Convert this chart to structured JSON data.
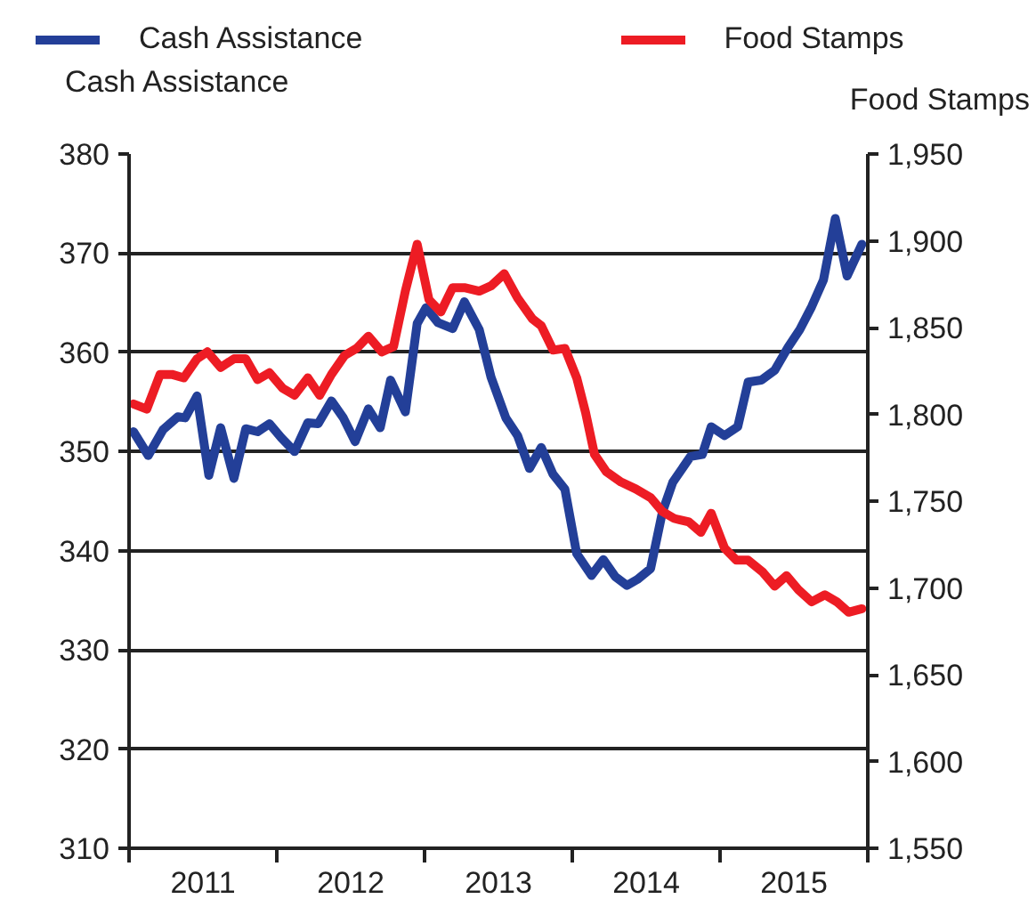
{
  "chart_data": {
    "type": "line",
    "ylabel": "Cash Assistance",
    "y2label": "Food Stamps",
    "xlim": [
      2011,
      2016
    ],
    "xticks": [
      {
        "value": 2011,
        "label": null
      },
      {
        "value": 2011.5,
        "label": "2011"
      },
      {
        "value": 2012,
        "label": null
      },
      {
        "value": 2012.5,
        "label": "2012"
      },
      {
        "value": 2013,
        "label": null
      },
      {
        "value": 2013.5,
        "label": "2013"
      },
      {
        "value": 2014,
        "label": null
      },
      {
        "value": 2014.5,
        "label": "2014"
      },
      {
        "value": 2015,
        "label": null
      },
      {
        "value": 2015.5,
        "label": "2015"
      },
      {
        "value": 2016,
        "label": null
      }
    ],
    "ylim": [
      310,
      380
    ],
    "yticks": [
      310,
      320,
      330,
      340,
      350,
      360,
      370,
      380
    ],
    "y2lim": [
      1550,
      1950
    ],
    "y2ticks": [
      {
        "value": 1550,
        "label": "1,550"
      },
      {
        "value": 1600,
        "label": "1,600"
      },
      {
        "value": 1650,
        "label": "1,650"
      },
      {
        "value": 1700,
        "label": "1,700"
      },
      {
        "value": 1750,
        "label": "1,750"
      },
      {
        "value": 1800,
        "label": "1,800"
      },
      {
        "value": 1850,
        "label": "1,850"
      },
      {
        "value": 1900,
        "label": "1,900"
      },
      {
        "value": 1950,
        "label": "1,950"
      }
    ],
    "grid": "y",
    "legend": "top",
    "marker": "none",
    "line_style": "solid",
    "series": [
      {
        "name": "Cash Assistance",
        "color": "#233f98",
        "x": [
          2011.03,
          2011.13,
          2011.23,
          2011.33,
          2011.38,
          2011.46,
          2011.54,
          2011.62,
          2011.71,
          2011.79,
          2011.87,
          2011.95,
          2012.03,
          2012.12,
          2012.21,
          2012.28,
          2012.37,
          2012.45,
          2012.53,
          2012.62,
          2012.7,
          2012.77,
          2012.87,
          2012.95,
          2013.01,
          2013.09,
          2013.19,
          2013.27,
          2013.37,
          2013.45,
          2013.55,
          2013.63,
          2013.71,
          2013.79,
          2013.87,
          2013.95,
          2014.03,
          2014.13,
          2014.21,
          2014.29,
          2014.37,
          2014.44,
          2014.53,
          2014.61,
          2014.68,
          2014.8,
          2014.88,
          2014.94,
          2015.03,
          2015.12,
          2015.19,
          2015.28,
          2015.37,
          2015.46,
          2015.54,
          2015.62,
          2015.7,
          2015.78,
          2015.86,
          2015.96
        ],
        "values": [
          352.0,
          349.6,
          352.2,
          353.5,
          353.4,
          355.6,
          347.6,
          352.4,
          347.3,
          352.3,
          352.0,
          352.8,
          351.4,
          350.0,
          352.9,
          352.8,
          355.1,
          353.4,
          351.0,
          354.3,
          352.4,
          357.2,
          354.0,
          362.9,
          364.5,
          363.0,
          362.4,
          365.1,
          362.3,
          357.5,
          353.4,
          351.6,
          348.3,
          350.4,
          347.7,
          346.2,
          339.7,
          337.5,
          339.1,
          337.4,
          336.5,
          337.1,
          338.2,
          343.9,
          346.9,
          349.5,
          349.7,
          352.5,
          351.6,
          352.5,
          357.0,
          357.2,
          358.2,
          360.5,
          362.3,
          364.6,
          367.3,
          373.5,
          367.7,
          370.9
        ]
      },
      {
        "name": "Food Stamps",
        "color": "#ed1c24",
        "axis": "y2",
        "x": [
          2011.03,
          2011.12,
          2011.21,
          2011.29,
          2011.37,
          2011.46,
          2011.53,
          2011.62,
          2011.71,
          2011.79,
          2011.87,
          2011.95,
          2012.04,
          2012.12,
          2012.21,
          2012.29,
          2012.37,
          2012.46,
          2012.54,
          2012.62,
          2012.71,
          2012.79,
          2012.87,
          2012.95,
          2013.03,
          2013.11,
          2013.19,
          2013.27,
          2013.37,
          2013.45,
          2013.54,
          2013.63,
          2013.73,
          2013.79,
          2013.87,
          2013.95,
          2014.03,
          2014.09,
          2014.15,
          2014.23,
          2014.33,
          2014.43,
          2014.53,
          2014.61,
          2014.69,
          2014.79,
          2014.87,
          2014.94,
          2015.03,
          2015.11,
          2015.19,
          2015.29,
          2015.37,
          2015.45,
          2015.53,
          2015.62,
          2015.71,
          2015.79,
          2015.87,
          2015.96
        ],
        "values": [
          1806,
          1803,
          1823,
          1823,
          1821,
          1832,
          1836,
          1827,
          1832,
          1832,
          1820,
          1824,
          1815,
          1811,
          1821,
          1811,
          1823,
          1834,
          1838,
          1845,
          1836,
          1839,
          1871,
          1898,
          1866,
          1859,
          1873,
          1873,
          1871,
          1874,
          1881,
          1867,
          1855,
          1851,
          1837,
          1838,
          1821,
          1801,
          1777,
          1767,
          1761,
          1757,
          1752,
          1744,
          1740,
          1738,
          1732,
          1743,
          1723,
          1716,
          1716,
          1709,
          1701,
          1707,
          1699,
          1692,
          1696,
          1692,
          1686,
          1688
        ]
      }
    ]
  }
}
